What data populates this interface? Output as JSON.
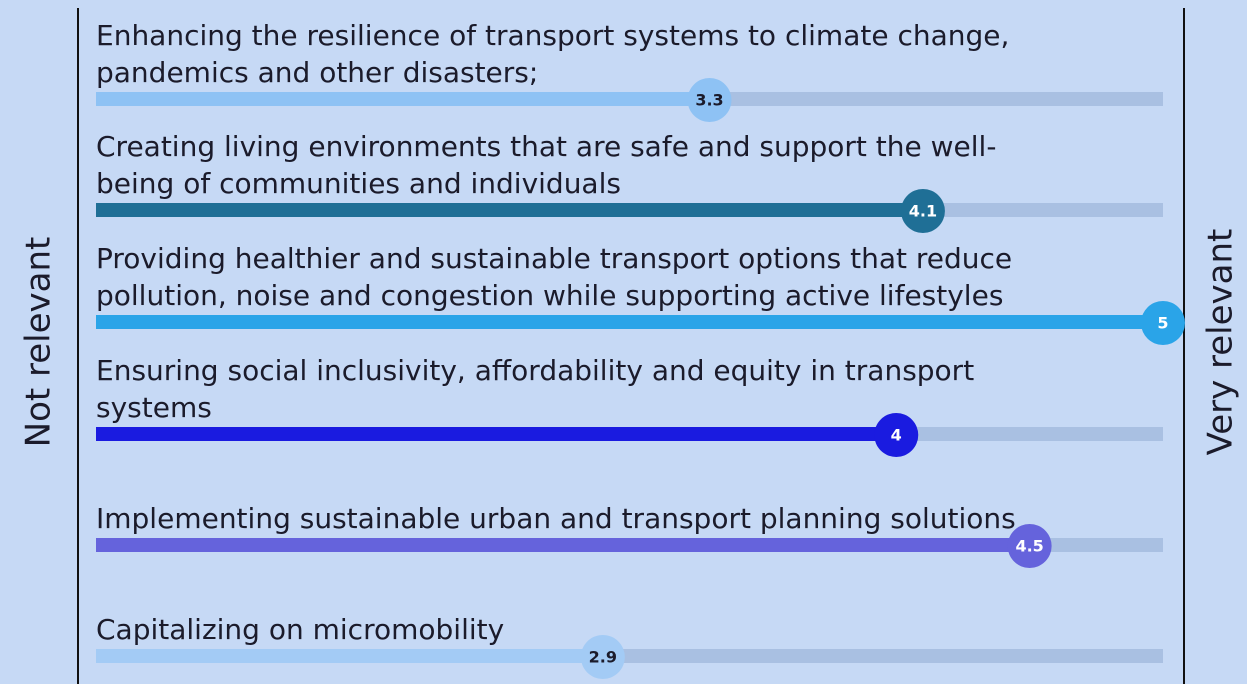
{
  "chart_data": {
    "type": "bar",
    "left_label": "Not relevant",
    "right_label": "Very relevant",
    "categories": [
      [
        "Enhancing the resilience of transport systems to climate change,",
        " pandemics and other disasters;"
      ],
      [
        "Creating living environments that are safe and support the well-",
        "being of communities and individuals"
      ],
      [
        "Providing healthier and sustainable transport options that reduce",
        "pollution, noise and congestion while supporting active lifestyles"
      ],
      [
        "Ensuring social inclusivity, affordability and equity in transport",
        "systems"
      ],
      [
        "Implementing sustainable urban and transport planning solutions"
      ],
      [
        "Capitalizing on micromobility"
      ]
    ],
    "series": [
      {
        "colors": [
          "#8ec2f4",
          "#1f6f96",
          "#2aa4e8",
          "#1a1be0",
          "#6563dc",
          "#a3cbf5"
        ],
        "values": [
          3.3,
          4.1,
          5,
          4,
          4.5,
          2.9
        ]
      }
    ],
    "xlim": [
      1,
      5
    ]
  }
}
